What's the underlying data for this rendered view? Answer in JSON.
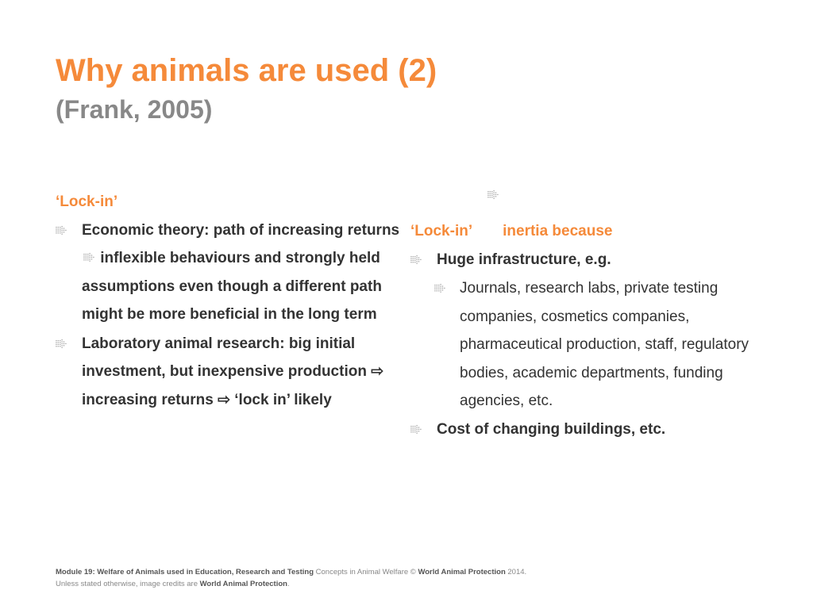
{
  "slide": {
    "title": "Why animals are used (2)",
    "subtitle": "(Frank, 2005)",
    "accent_color": "#f58a3a",
    "bullet_icon": "dotted-arrow-icon"
  },
  "left": {
    "heading": "‘Lock-in’",
    "b1_part1": "Economic theory: path of increasing returns",
    "b1_part2": " inflexible behaviours and strongly held assumptions even though a different path might be more beneficial in the long term",
    "b2_part1": "Laboratory animal research: big initial investment, but inexpensive production ",
    "b2_arrow1": "⇨",
    "b2_part2": " increasing returns ",
    "b2_arrow2": "⇨",
    "b2_part3": " ‘lock in’ likely"
  },
  "right": {
    "heading_a": "‘Lock-in’",
    "heading_b": "inertia because",
    "b1": "Huge infrastructure, e.g.",
    "sub1": "Journals, research labs, private testing companies, cosmetics companies, pharmaceutical production, staff, regulatory bodies, academic departments, funding agencies, etc.",
    "b2": "Cost of changing buildings, etc."
  },
  "footer": {
    "module": "Module 19: Welfare of Animals used in Education, Research and Testing",
    "concepts": " Concepts in Animal Welfare © ",
    "org": "World Animal Protection",
    "year": " 2014.",
    "credits_prefix": "Unless stated otherwise, image credits are ",
    "credits_org": "World Animal Protection",
    "credits_suffix": "."
  }
}
